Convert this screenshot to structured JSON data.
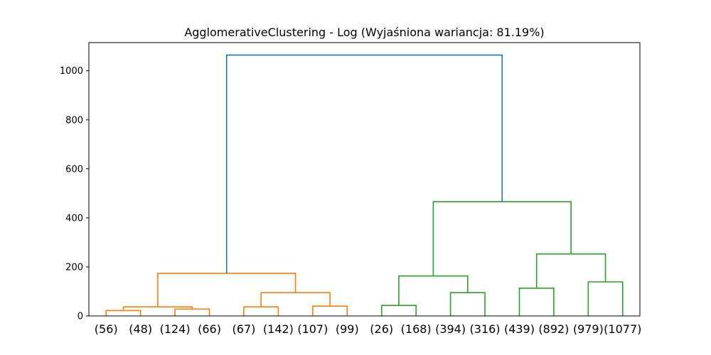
{
  "chart_data": {
    "type": "dendrogram",
    "title": "AgglomerativeClustering - Log (Wyjaśniona wariancja: 81.19%)",
    "ylim": [
      0,
      1115
    ],
    "yticks": [
      0,
      200,
      400,
      600,
      800,
      1000
    ],
    "leaves": [
      "(56)",
      "(48)",
      "(124)",
      "(66)",
      "(67)",
      "(142)",
      "(107)",
      "(99)",
      "(26)",
      "(168)",
      "(394)",
      "(316)",
      "(439)",
      "(892)",
      "(979)",
      "(1077)"
    ],
    "colors": {
      "orange": "#ff7f0e",
      "green": "#2ca02c",
      "blue": "#1f77b4"
    },
    "merges": [
      {
        "left": 0,
        "right": 1,
        "left_h": 0,
        "right_h": 0,
        "height": 22,
        "color": "orange"
      },
      {
        "left": 2,
        "right": 3,
        "left_h": 0,
        "right_h": 0,
        "height": 28,
        "color": "orange"
      },
      {
        "left": 0.5,
        "right": 2.5,
        "left_h": 22,
        "right_h": 28,
        "height": 37,
        "color": "orange"
      },
      {
        "left": 4,
        "right": 5,
        "left_h": 0,
        "right_h": 0,
        "height": 37,
        "color": "orange"
      },
      {
        "left": 6,
        "right": 7,
        "left_h": 0,
        "right_h": 0,
        "height": 40,
        "color": "orange"
      },
      {
        "left": 4.5,
        "right": 6.5,
        "left_h": 37,
        "right_h": 40,
        "height": 95,
        "color": "orange"
      },
      {
        "left": 1.5,
        "right": 5.5,
        "left_h": 37,
        "right_h": 95,
        "height": 174,
        "color": "orange"
      },
      {
        "left": 8,
        "right": 9,
        "left_h": 0,
        "right_h": 0,
        "height": 43,
        "color": "green"
      },
      {
        "left": 10,
        "right": 11,
        "left_h": 0,
        "right_h": 0,
        "height": 95,
        "color": "green"
      },
      {
        "left": 8.5,
        "right": 10.5,
        "left_h": 43,
        "right_h": 95,
        "height": 163,
        "color": "green"
      },
      {
        "left": 12,
        "right": 13,
        "left_h": 0,
        "right_h": 0,
        "height": 113,
        "color": "green"
      },
      {
        "left": 14,
        "right": 15,
        "left_h": 0,
        "right_h": 0,
        "height": 139,
        "color": "green"
      },
      {
        "left": 12.5,
        "right": 14.5,
        "left_h": 113,
        "right_h": 139,
        "height": 253,
        "color": "green"
      },
      {
        "left": 9.5,
        "right": 13.5,
        "left_h": 163,
        "right_h": 253,
        "height": 466,
        "color": "green"
      },
      {
        "left": 3.5,
        "right": 11.5,
        "left_h": 174,
        "right_h": 466,
        "height": 1064,
        "color": "blue"
      }
    ]
  }
}
